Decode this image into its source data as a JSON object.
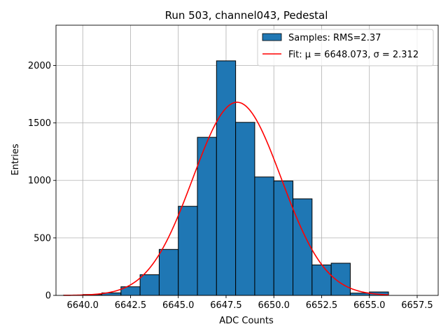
{
  "chart_data": {
    "type": "bar",
    "title": "Run 503, channel043, Pedestal",
    "xlabel": "ADC Counts",
    "ylabel": "Entries",
    "xlim": [
      6638.6,
      6658.6
    ],
    "ylim": [
      0,
      2350
    ],
    "grid": true,
    "legend_position": "top-right",
    "bar_color": "#1f77b4",
    "fit_color": "#ff0000",
    "xticks": [
      6640.0,
      6642.5,
      6645.0,
      6647.5,
      6650.0,
      6652.5,
      6655.0,
      6657.5
    ],
    "xtick_labels": [
      "6640.0",
      "6642.5",
      "6645.0",
      "6647.5",
      "6650.0",
      "6652.5",
      "6655.0",
      "6657.5"
    ],
    "yticks": [
      0,
      500,
      1000,
      1500,
      2000
    ],
    "ytick_labels": [
      "0",
      "500",
      "1000",
      "1500",
      "2000"
    ],
    "bin_width": 1.0,
    "bin_edges_start": 6639.0,
    "histogram": {
      "name": "Samples: RMS=2.37",
      "bin_centers": [
        6639.5,
        6640.5,
        6641.5,
        6642.5,
        6643.5,
        6644.5,
        6645.5,
        6646.5,
        6647.5,
        6648.5,
        6649.5,
        6650.5,
        6651.5,
        6652.5,
        6653.5,
        6654.5,
        6655.5
      ],
      "values": [
        3,
        8,
        22,
        75,
        180,
        400,
        775,
        1375,
        2040,
        1505,
        1030,
        995,
        840,
        265,
        280,
        20,
        30
      ]
    },
    "fit": {
      "name": "Fit: μ = 6648.073, σ = 2.312",
      "mu": 6648.073,
      "sigma": 2.312,
      "amplitude": 1680,
      "x_range": [
        6639.0,
        6656.0
      ]
    }
  }
}
